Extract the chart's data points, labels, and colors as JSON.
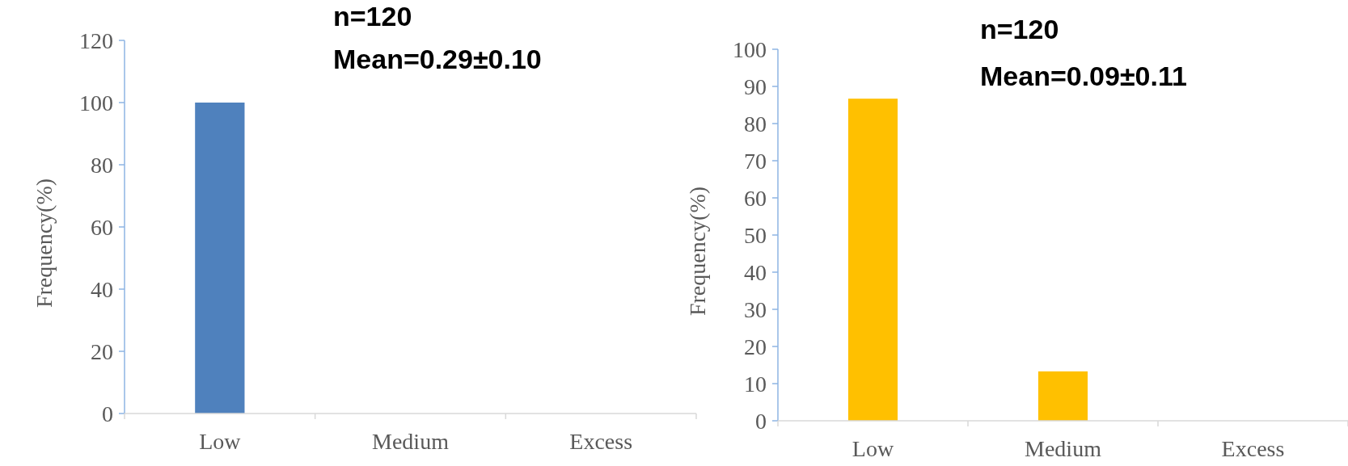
{
  "chart_data": [
    {
      "type": "bar",
      "categories": [
        "Low",
        "Medium",
        "Excess"
      ],
      "values": [
        100,
        0,
        0
      ],
      "color": "#4f81bd",
      "ylabel": "Frequency(%)",
      "ylim": [
        0,
        120
      ],
      "yticks": [
        0,
        20,
        40,
        60,
        80,
        100,
        120
      ],
      "annotations": [
        "n=120",
        "Mean=0.29±0.10"
      ]
    },
    {
      "type": "bar",
      "categories": [
        "Low",
        "Medium",
        "Excess"
      ],
      "values": [
        86.7,
        13.3,
        0
      ],
      "color": "#ffc000",
      "ylabel": "Frequency(%)",
      "ylim": [
        0,
        100
      ],
      "yticks": [
        0,
        10,
        20,
        30,
        40,
        50,
        60,
        70,
        80,
        90,
        100
      ],
      "annotations": [
        "n=120",
        "Mean=0.09±0.11"
      ]
    }
  ]
}
